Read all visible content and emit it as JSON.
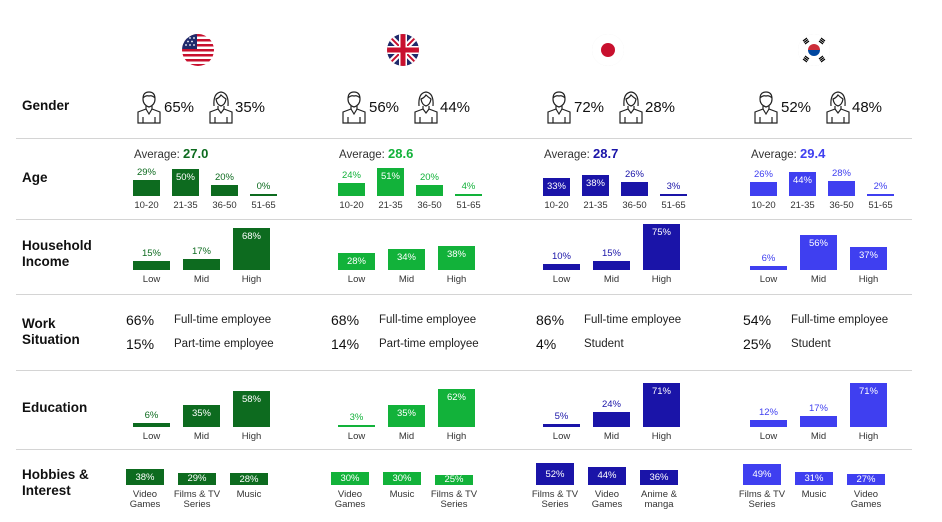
{
  "colors": {
    "us": "#0d6b1f",
    "uk": "#12b23a",
    "jp": "#1a14a8",
    "kr": "#3f3ff0"
  },
  "row_labels": {
    "gender": "Gender",
    "age": "Age",
    "income": "Household Income",
    "work": "Work Situation",
    "education": "Education",
    "hobbies": "Hobbies & Interest"
  },
  "countries": [
    {
      "key": "us",
      "flag": "us-flag-icon",
      "gender": {
        "male": "65%",
        "female": "35%"
      },
      "age": {
        "avg_label": "Average:",
        "avg": "27.0",
        "cats": [
          "10-20",
          "21-35",
          "36-50",
          "51-65"
        ],
        "values": [
          29,
          50,
          20,
          0
        ]
      },
      "income": {
        "cats": [
          "Low",
          "Mid",
          "High"
        ],
        "values": [
          15,
          17,
          68
        ]
      },
      "work": [
        {
          "pct": "66%",
          "label": "Full-time employee"
        },
        {
          "pct": "15%",
          "label": "Part-time employee"
        }
      ],
      "education": {
        "cats": [
          "Low",
          "Mid",
          "High"
        ],
        "values": [
          6,
          35,
          58
        ]
      },
      "hobbies": {
        "cats": [
          "Video Games",
          "Films & TV Series",
          "Music"
        ],
        "values": [
          38,
          29,
          28
        ]
      }
    },
    {
      "key": "uk",
      "flag": "uk-flag-icon",
      "gender": {
        "male": "56%",
        "female": "44%"
      },
      "age": {
        "avg_label": "Average:",
        "avg": "28.6",
        "cats": [
          "10-20",
          "21-35",
          "36-50",
          "51-65"
        ],
        "values": [
          24,
          51,
          20,
          4
        ]
      },
      "income": {
        "cats": [
          "Low",
          "Mid",
          "High"
        ],
        "values": [
          28,
          34,
          38
        ]
      },
      "work": [
        {
          "pct": "68%",
          "label": "Full-time employee"
        },
        {
          "pct": "14%",
          "label": "Part-time employee"
        }
      ],
      "education": {
        "cats": [
          "Low",
          "Mid",
          "High"
        ],
        "values": [
          3,
          35,
          62
        ]
      },
      "hobbies": {
        "cats": [
          "Video Games",
          "Music",
          "Films & TV Series"
        ],
        "values": [
          30,
          30,
          25
        ]
      }
    },
    {
      "key": "jp",
      "flag": "japan-flag-icon",
      "gender": {
        "male": "72%",
        "female": "28%"
      },
      "age": {
        "avg_label": "Average:",
        "avg": "28.7",
        "cats": [
          "10-20",
          "21-35",
          "36-50",
          "51-65"
        ],
        "values": [
          33,
          38,
          26,
          3
        ]
      },
      "income": {
        "cats": [
          "Low",
          "Mid",
          "High"
        ],
        "values": [
          10,
          15,
          75
        ]
      },
      "work": [
        {
          "pct": "86%",
          "label": "Full-time employee"
        },
        {
          "pct": "4%",
          "label": "Student"
        }
      ],
      "education": {
        "cats": [
          "Low",
          "Mid",
          "High"
        ],
        "values": [
          5,
          24,
          71
        ]
      },
      "hobbies": {
        "cats": [
          "Films & TV Series",
          "Video Games",
          "Anime & manga"
        ],
        "values": [
          52,
          44,
          36
        ]
      }
    },
    {
      "key": "kr",
      "flag": "korea-flag-icon",
      "gender": {
        "male": "52%",
        "female": "48%"
      },
      "age": {
        "avg_label": "Average:",
        "avg": "29.4",
        "cats": [
          "10-20",
          "21-35",
          "36-50",
          "51-65"
        ],
        "values": [
          26,
          44,
          28,
          2
        ]
      },
      "income": {
        "cats": [
          "Low",
          "Mid",
          "High"
        ],
        "values": [
          6,
          56,
          37
        ]
      },
      "work": [
        {
          "pct": "54%",
          "label": "Full-time employee"
        },
        {
          "pct": "25%",
          "label": "Student"
        }
      ],
      "education": {
        "cats": [
          "Low",
          "Mid",
          "High"
        ],
        "values": [
          12,
          17,
          71
        ]
      },
      "hobbies": {
        "cats": [
          "Films & TV Series",
          "Music",
          "Video Games"
        ],
        "values": [
          49,
          31,
          27
        ]
      }
    }
  ],
  "chart_data": {
    "type": "bar",
    "series": [
      {
        "name": "us",
        "age": [
          29,
          50,
          20,
          0
        ],
        "income": [
          15,
          17,
          68
        ],
        "education": [
          6,
          35,
          58
        ],
        "hobbies": [
          38,
          29,
          28
        ]
      },
      {
        "name": "uk",
        "age": [
          24,
          51,
          20,
          4
        ],
        "income": [
          28,
          34,
          38
        ],
        "education": [
          3,
          35,
          62
        ],
        "hobbies": [
          30,
          30,
          25
        ]
      },
      {
        "name": "jp",
        "age": [
          33,
          38,
          26,
          3
        ],
        "income": [
          10,
          15,
          75
        ],
        "education": [
          5,
          24,
          71
        ],
        "hobbies": [
          52,
          44,
          36
        ]
      },
      {
        "name": "kr",
        "age": [
          26,
          44,
          28,
          2
        ],
        "income": [
          6,
          56,
          37
        ],
        "education": [
          12,
          17,
          71
        ],
        "hobbies": [
          49,
          31,
          27
        ]
      }
    ],
    "age_categories": [
      "10-20",
      "21-35",
      "36-50",
      "51-65"
    ],
    "level_categories": [
      "Low",
      "Mid",
      "High"
    ],
    "age_averages": [
      27.0,
      28.6,
      28.7,
      29.4
    ],
    "unit": "%"
  }
}
